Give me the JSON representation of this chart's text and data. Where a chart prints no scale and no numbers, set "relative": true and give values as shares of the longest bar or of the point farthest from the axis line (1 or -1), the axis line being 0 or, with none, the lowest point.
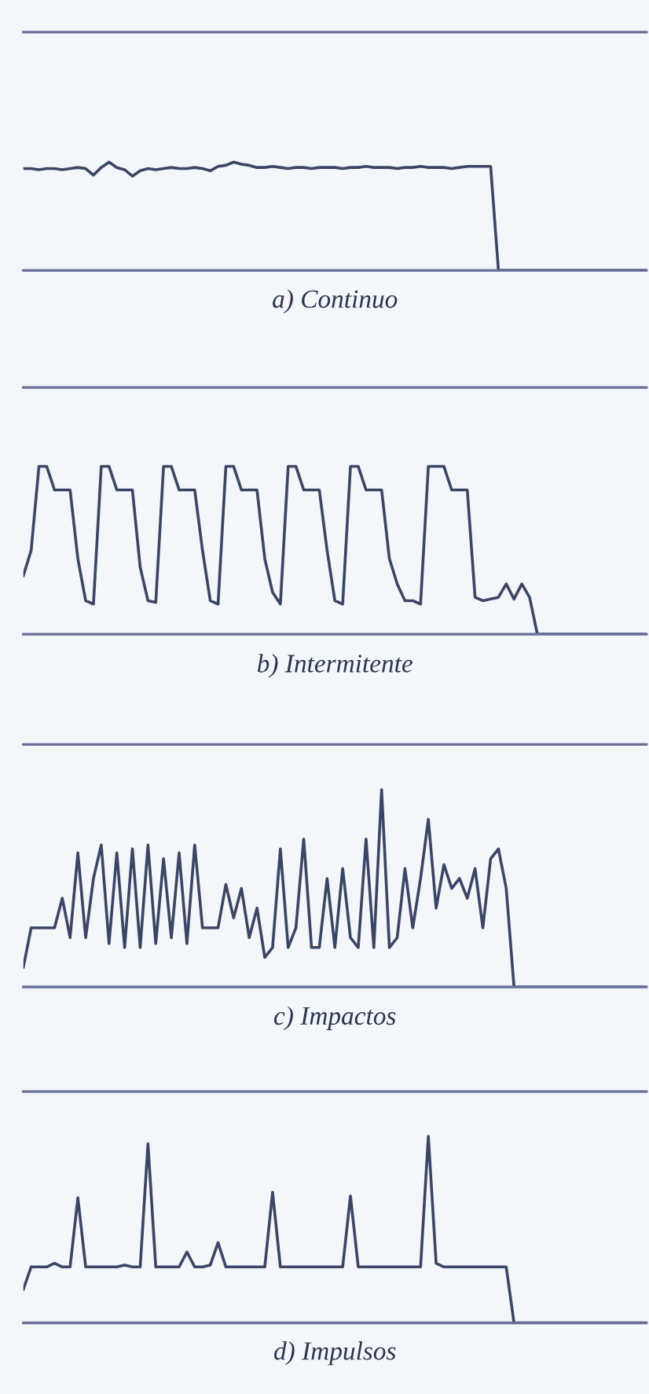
{
  "chart_data": [
    {
      "type": "line",
      "title": "a) Continuo",
      "relative": true,
      "color": "#3b4566",
      "grid": false,
      "legend": false,
      "categories": [
        null,
        null,
        null,
        null,
        null,
        null,
        null,
        null,
        null,
        null,
        null,
        null,
        null,
        null,
        null,
        null,
        null,
        null,
        null,
        null,
        null,
        null,
        null,
        null,
        null,
        null,
        null,
        null,
        null,
        null,
        null,
        null,
        null,
        null,
        null,
        null,
        null,
        null,
        null,
        null,
        null,
        null,
        null,
        null,
        null,
        null,
        null,
        null,
        null,
        null,
        null,
        null,
        null,
        null,
        null,
        null,
        null,
        null,
        null,
        null,
        null,
        null,
        null,
        null,
        null,
        null,
        null,
        null,
        null,
        null,
        null,
        null,
        null,
        null,
        null,
        null,
        null,
        null,
        null,
        null,
        null
      ],
      "values": [
        0.94,
        0.94,
        0.93,
        0.94,
        0.94,
        0.93,
        0.94,
        0.95,
        0.94,
        0.88,
        0.95,
        1.0,
        0.95,
        0.93,
        0.87,
        0.92,
        0.94,
        0.93,
        0.94,
        0.95,
        0.94,
        0.94,
        0.95,
        0.94,
        0.92,
        0.96,
        0.97,
        1.0,
        0.98,
        0.97,
        0.95,
        0.95,
        0.96,
        0.95,
        0.94,
        0.95,
        0.95,
        0.94,
        0.95,
        0.95,
        0.95,
        0.94,
        0.95,
        0.95,
        0.96,
        0.95,
        0.95,
        0.95,
        0.94,
        0.95,
        0.95,
        0.96,
        0.95,
        0.95,
        0.95,
        0.94,
        0.95,
        0.96,
        0.96,
        0.96,
        0.96,
        0,
        0,
        0,
        0,
        0,
        0,
        0,
        0,
        0,
        0,
        0,
        0,
        0,
        0,
        0,
        0,
        0,
        0,
        0,
        0
      ]
    },
    {
      "type": "line",
      "title": "b) Intermitente",
      "relative": true,
      "color": "#3b4566",
      "grid": false,
      "legend": false,
      "categories": [
        null,
        null,
        null,
        null,
        null,
        null,
        null,
        null,
        null,
        null,
        null,
        null,
        null,
        null,
        null,
        null,
        null,
        null,
        null,
        null,
        null,
        null,
        null,
        null,
        null,
        null,
        null,
        null,
        null,
        null,
        null,
        null,
        null,
        null,
        null,
        null,
        null,
        null,
        null,
        null,
        null,
        null,
        null,
        null,
        null,
        null,
        null,
        null,
        null,
        null,
        null,
        null,
        null,
        null,
        null,
        null,
        null,
        null,
        null,
        null,
        null,
        null,
        null,
        null,
        null,
        null,
        null,
        null,
        null,
        null,
        null,
        null,
        null,
        null,
        null,
        null,
        null,
        null,
        null,
        null,
        null
      ],
      "values": [
        0.35,
        0.5,
        1.0,
        1.0,
        0.86,
        0.86,
        0.86,
        0.45,
        0.2,
        0.18,
        1.0,
        1.0,
        0.86,
        0.86,
        0.86,
        0.4,
        0.2,
        0.19,
        1.0,
        1.0,
        0.86,
        0.86,
        0.86,
        0.5,
        0.2,
        0.18,
        1.0,
        1.0,
        0.86,
        0.86,
        0.86,
        0.45,
        0.25,
        0.18,
        1.0,
        1.0,
        0.86,
        0.86,
        0.86,
        0.5,
        0.2,
        0.18,
        1.0,
        1.0,
        0.86,
        0.86,
        0.86,
        0.45,
        0.3,
        0.2,
        0.2,
        0.18,
        1.0,
        1.0,
        1.0,
        0.86,
        0.86,
        0.86,
        0.22,
        0.2,
        0.21,
        0.22,
        0.3,
        0.21,
        0.3,
        0.22,
        0,
        0,
        0,
        0,
        0,
        0,
        0,
        0,
        0,
        0,
        0,
        0,
        0,
        0,
        0
      ]
    },
    {
      "type": "line",
      "title": "c) Impactos",
      "relative": true,
      "color": "#3b4566",
      "grid": false,
      "legend": false,
      "categories": [
        null,
        null,
        null,
        null,
        null,
        null,
        null,
        null,
        null,
        null,
        null,
        null,
        null,
        null,
        null,
        null,
        null,
        null,
        null,
        null,
        null,
        null,
        null,
        null,
        null,
        null,
        null,
        null,
        null,
        null,
        null,
        null,
        null,
        null,
        null,
        null,
        null,
        null,
        null,
        null,
        null,
        null,
        null,
        null,
        null,
        null,
        null,
        null,
        null,
        null,
        null,
        null,
        null,
        null,
        null,
        null,
        null,
        null,
        null,
        null,
        null,
        null,
        null,
        null,
        null,
        null,
        null,
        null,
        null,
        null,
        null,
        null,
        null,
        null,
        null,
        null,
        null,
        null,
        null,
        null,
        null
      ],
      "values": [
        0.1,
        0.3,
        0.3,
        0.3,
        0.3,
        0.45,
        0.25,
        0.68,
        0.25,
        0.55,
        0.72,
        0.22,
        0.68,
        0.2,
        0.7,
        0.2,
        0.72,
        0.22,
        0.65,
        0.25,
        0.68,
        0.22,
        0.72,
        0.3,
        0.3,
        0.3,
        0.52,
        0.35,
        0.5,
        0.25,
        0.4,
        0.15,
        0.2,
        0.7,
        0.2,
        0.3,
        0.75,
        0.2,
        0.2,
        0.55,
        0.2,
        0.6,
        0.25,
        0.2,
        0.75,
        0.2,
        1.0,
        0.2,
        0.25,
        0.6,
        0.3,
        0.55,
        0.85,
        0.4,
        0.62,
        0.5,
        0.55,
        0.45,
        0.6,
        0.3,
        0.65,
        0.7,
        0.5,
        0,
        0,
        0,
        0,
        0,
        0,
        0,
        0,
        0,
        0,
        0,
        0,
        0,
        0,
        0,
        0,
        0,
        0
      ]
    },
    {
      "type": "line",
      "title": "d) Impulsos",
      "relative": true,
      "color": "#3b4566",
      "grid": false,
      "legend": false,
      "categories": [
        null,
        null,
        null,
        null,
        null,
        null,
        null,
        null,
        null,
        null,
        null,
        null,
        null,
        null,
        null,
        null,
        null,
        null,
        null,
        null,
        null,
        null,
        null,
        null,
        null,
        null,
        null,
        null,
        null,
        null,
        null,
        null,
        null,
        null,
        null,
        null,
        null,
        null,
        null,
        null,
        null,
        null,
        null,
        null,
        null,
        null,
        null,
        null,
        null,
        null,
        null,
        null,
        null,
        null,
        null,
        null,
        null,
        null,
        null,
        null,
        null,
        null,
        null,
        null,
        null,
        null,
        null,
        null,
        null,
        null,
        null,
        null,
        null,
        null,
        null,
        null,
        null,
        null,
        null,
        null,
        null
      ],
      "values": [
        0.18,
        0.3,
        0.3,
        0.3,
        0.32,
        0.3,
        0.3,
        0.67,
        0.3,
        0.3,
        0.3,
        0.3,
        0.3,
        0.31,
        0.3,
        0.3,
        0.96,
        0.3,
        0.3,
        0.3,
        0.3,
        0.38,
        0.3,
        0.3,
        0.31,
        0.43,
        0.3,
        0.3,
        0.3,
        0.3,
        0.3,
        0.3,
        0.7,
        0.3,
        0.3,
        0.3,
        0.3,
        0.3,
        0.3,
        0.3,
        0.3,
        0.3,
        0.68,
        0.3,
        0.3,
        0.3,
        0.3,
        0.3,
        0.3,
        0.3,
        0.3,
        0.3,
        1.0,
        0.32,
        0.3,
        0.3,
        0.3,
        0.3,
        0.3,
        0.3,
        0.3,
        0.3,
        0.3,
        0,
        0,
        0,
        0,
        0,
        0,
        0,
        0,
        0,
        0,
        0,
        0,
        0,
        0,
        0,
        0,
        0,
        0
      ]
    }
  ]
}
